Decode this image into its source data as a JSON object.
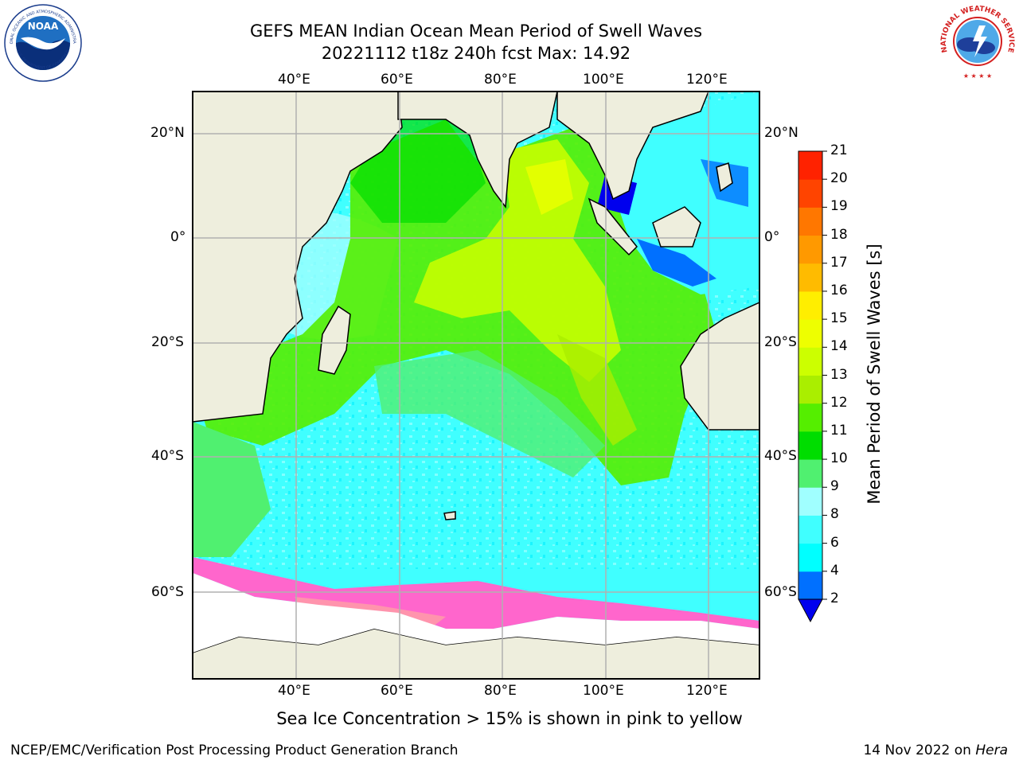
{
  "title_line1": "GEFS MEAN Indian Ocean Mean Period of Swell Waves",
  "title_line2": "20221112 t18z 240h fcst   Max: 14.92",
  "caption": "Sea Ice Concentration > 15% is shown in pink to yellow",
  "footer_left": "NCEP/EMC/Verification Post Processing Product Generation Branch",
  "footer_date": "14 Nov 2022 on ",
  "footer_machine": "Hera",
  "logos": {
    "noaa_text": "NOAA",
    "noaa_ring_top": "NATIONAL OCEANIC AND ATMOSPHERIC ADMINISTRATION",
    "noaa_ring_bottom": "U.S. DEPARTMENT OF COMMERCE",
    "nws_ring": "NATIONAL WEATHER SERVICE"
  },
  "map": {
    "lon_labels": [
      "40°E",
      "60°E",
      "80°E",
      "100°E",
      "120°E"
    ],
    "lat_labels_left": [
      "20°N",
      "0°",
      "20°S",
      "40°S",
      "60°S"
    ],
    "lat_labels_right": [
      "20°N",
      "0°",
      "20°S",
      "40°S",
      "60°S"
    ],
    "lon_min": 20,
    "lon_max": 130,
    "land_color": "#eeeedd",
    "ice_color": "#ff66cc"
  },
  "colorbar": {
    "label": "Mean Period of Swell Waves [s]",
    "ticks": [
      "2",
      "4",
      "6",
      "8",
      "9",
      "10",
      "11",
      "12",
      "13",
      "14",
      "15",
      "16",
      "17",
      "18",
      "19",
      "20",
      "21"
    ],
    "colors": [
      "#0070ff",
      "#00ffff",
      "#40ffff",
      "#a0ffff",
      "#50f070",
      "#00dd00",
      "#55ee00",
      "#aaee00",
      "#ccff00",
      "#eeff00",
      "#ffee00",
      "#ffbb00",
      "#ff9900",
      "#ff7700",
      "#ff4400",
      "#ff2200"
    ],
    "extend_color": "#0000ee"
  }
}
